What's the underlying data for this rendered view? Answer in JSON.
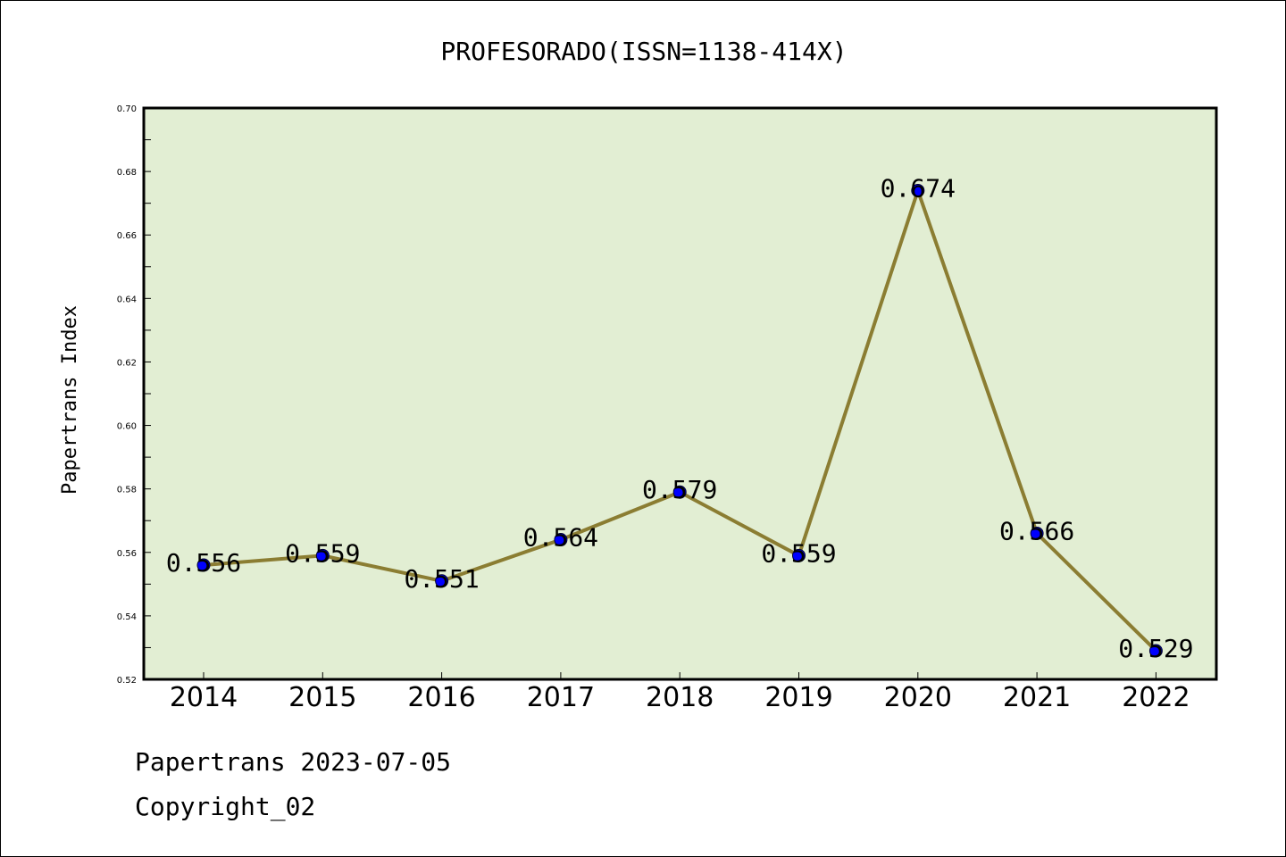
{
  "colors": {
    "plot_background": "#e2eed3",
    "line": "#8b7d32",
    "marker": "#0000ff",
    "axis": "#000000"
  },
  "chart_data": {
    "type": "line",
    "title": "PROFESORADO(ISSN=1138-414X)",
    "xlabel": "",
    "ylabel": "Papertrans Index",
    "categories": [
      "2014",
      "2015",
      "2016",
      "2017",
      "2018",
      "2019",
      "2020",
      "2021",
      "2022"
    ],
    "series": [
      {
        "values": [
          0.556,
          0.559,
          0.551,
          0.564,
          0.579,
          0.559,
          0.674,
          0.566,
          0.529
        ],
        "labels": [
          "0.556",
          "0.559",
          "0.551",
          "0.564",
          "0.579",
          "0.559",
          "0.674",
          "0.566",
          "0.529"
        ]
      }
    ],
    "ylim": [
      0.52,
      0.7
    ],
    "yticks": [
      "0.52",
      "0.54",
      "0.56",
      "0.58",
      "0.60",
      "0.62",
      "0.64",
      "0.66",
      "0.68",
      "0.70"
    ],
    "grid": false,
    "legend": "none"
  },
  "footer": {
    "date_line": "Papertrans 2023-07-05",
    "copyright": "Copyright_02"
  }
}
